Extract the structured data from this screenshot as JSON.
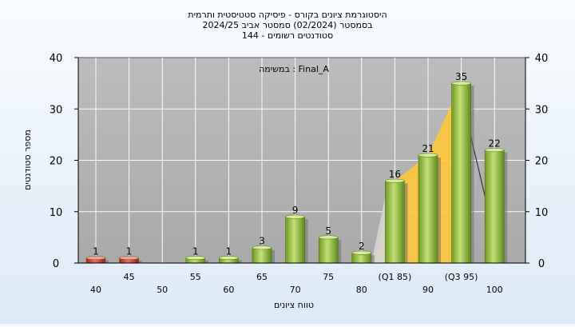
{
  "chart_data": {
    "type": "bar",
    "title_lines": [
      "היסטוגרמת ציונים בקורס - פיסיקה סטטיסטית ותרמית",
      "בסמסטר  (02/2024)  סמסטר אביב 2024/25",
      "סטודנטים רשומים - 144"
    ],
    "annotation": "במשימה : Final_A",
    "xlabel": "טווח ציונים",
    "ylabel": "מספר סטודנטים",
    "ylim": [
      0,
      40
    ],
    "yticks": [
      "0",
      "10",
      "20",
      "30",
      "40"
    ],
    "grid": true,
    "categories": [
      "40",
      "45",
      "50",
      "55",
      "60",
      "65",
      "70",
      "75",
      "80",
      "(Q1 85)",
      "90",
      "(Q3 95)",
      "100"
    ],
    "values": [
      1,
      1,
      0,
      1,
      1,
      3,
      9,
      5,
      2,
      16,
      21,
      35,
      22
    ],
    "value_labels": [
      "1",
      "1",
      "",
      "1",
      "1",
      "3",
      "9",
      "5",
      "2",
      "16",
      "21",
      "35",
      "22"
    ],
    "bar_colors": [
      "#d62b2b",
      "#d62b2b",
      "",
      "#7ea82c",
      "#7ea82c",
      "#7ea82c",
      "#7ea82c",
      "#7ea82c",
      "#7ea82c",
      "#7ea82c",
      "#7ea82c",
      "#7ea82c",
      "#7ea82c"
    ],
    "quartile_band": {
      "from_category": "(Q1 85)",
      "to_category": "(Q3 95)",
      "color": "#ffc83a"
    }
  }
}
